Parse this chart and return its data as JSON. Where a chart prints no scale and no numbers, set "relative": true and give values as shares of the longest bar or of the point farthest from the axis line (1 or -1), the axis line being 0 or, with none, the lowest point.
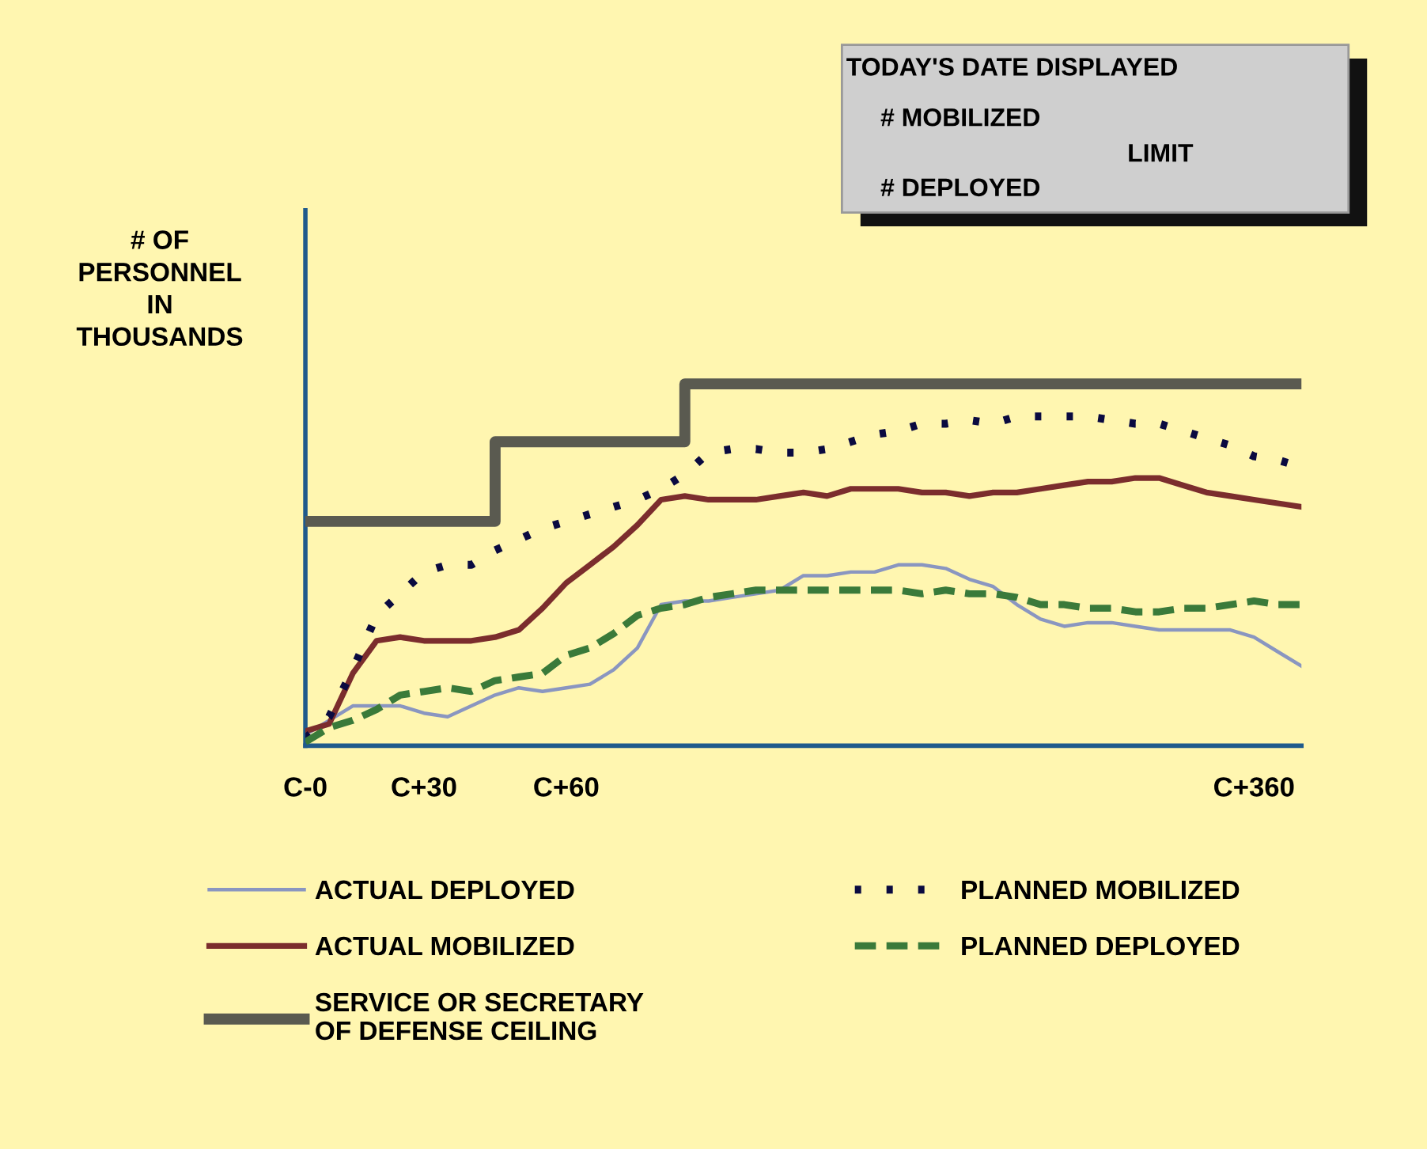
{
  "chart_data": {
    "type": "line",
    "relative": true,
    "ylabel": "# OF\nPERSONNEL\nIN\nTHOUSANDS",
    "categories": [
      "C-0",
      null,
      null,
      null,
      null,
      "C+30",
      null,
      null,
      null,
      null,
      null,
      "C+60",
      null,
      null,
      null,
      null,
      null,
      null,
      null,
      null,
      null,
      null,
      null,
      null,
      null,
      null,
      null,
      null,
      null,
      null,
      null,
      null,
      null,
      null,
      null,
      null,
      null,
      null,
      null,
      null,
      "C+360",
      null,
      null
    ],
    "annotations": [
      "TODAY'S DATE DISPLAYED",
      "# MOBILIZED",
      "LIMIT",
      "# DEPLOYED"
    ],
    "legend": "bottom",
    "grid": false,
    "marker": "none",
    "series": [
      {
        "name": "ACTUAL DEPLOYED",
        "color": "#8a96c0",
        "line_style": "solid",
        "values": [
          0.03,
          0.07,
          0.11,
          0.11,
          0.11,
          0.09,
          0.08,
          0.11,
          0.14,
          0.16,
          0.15,
          0.16,
          0.17,
          0.21,
          0.27,
          0.39,
          0.4,
          0.4,
          0.41,
          0.42,
          0.43,
          0.47,
          0.47,
          0.48,
          0.48,
          0.5,
          0.5,
          0.49,
          0.46,
          0.44,
          0.39,
          0.35,
          0.33,
          0.34,
          0.34,
          0.33,
          0.32,
          0.32,
          0.32,
          0.32,
          0.3,
          0.26,
          0.22
        ]
      },
      {
        "name": "ACTUAL MOBILIZED",
        "color": "#7b2d2d",
        "line_style": "solid",
        "values": [
          0.04,
          0.06,
          0.2,
          0.29,
          0.3,
          0.29,
          0.29,
          0.29,
          0.3,
          0.32,
          0.38,
          0.45,
          0.5,
          0.55,
          0.61,
          0.68,
          0.69,
          0.68,
          0.68,
          0.68,
          0.69,
          0.7,
          0.69,
          0.71,
          0.71,
          0.71,
          0.7,
          0.7,
          0.69,
          0.7,
          0.7,
          0.71,
          0.72,
          0.73,
          0.73,
          0.74,
          0.74,
          0.72,
          0.7,
          0.69,
          0.68,
          0.67,
          0.66
        ]
      },
      {
        "name": "SERVICE OR SECRETARY\nOF DEFENSE CEILING",
        "color": "#5a5a50",
        "type": "step",
        "line_style": "solid",
        "values": [
          0.62,
          0.62,
          0.62,
          0.62,
          0.62,
          0.62,
          0.62,
          0.62,
          0.84,
          0.84,
          0.84,
          0.84,
          0.84,
          0.84,
          0.84,
          0.84,
          1.0,
          1.0,
          1.0,
          1.0,
          1.0,
          1.0,
          1.0,
          1.0,
          1.0,
          1.0,
          1.0,
          1.0,
          1.0,
          1.0,
          1.0,
          1.0,
          1.0,
          1.0,
          1.0,
          1.0,
          1.0,
          1.0,
          1.0,
          1.0,
          1.0,
          1.0,
          1.0
        ]
      },
      {
        "name": "PLANNED MOBILIZED",
        "color": "#0a0a40",
        "line_style": "dotted",
        "values": [
          0.02,
          0.08,
          0.21,
          0.36,
          0.42,
          0.48,
          0.5,
          0.5,
          0.54,
          0.57,
          0.6,
          0.62,
          0.64,
          0.66,
          0.68,
          0.71,
          0.75,
          0.81,
          0.82,
          0.82,
          0.81,
          0.81,
          0.82,
          0.84,
          0.86,
          0.87,
          0.89,
          0.89,
          0.9,
          0.89,
          0.91,
          0.91,
          0.91,
          0.91,
          0.9,
          0.89,
          0.89,
          0.87,
          0.85,
          0.83,
          0.8,
          0.79,
          0.77
        ]
      },
      {
        "name": "PLANNED DEPLOYED",
        "color": "#3a7a3a",
        "line_style": "dashed",
        "values": [
          0.01,
          0.05,
          0.07,
          0.1,
          0.14,
          0.15,
          0.16,
          0.15,
          0.18,
          0.19,
          0.2,
          0.25,
          0.27,
          0.31,
          0.36,
          0.38,
          0.39,
          0.41,
          0.42,
          0.43,
          0.43,
          0.43,
          0.43,
          0.43,
          0.43,
          0.43,
          0.42,
          0.43,
          0.42,
          0.42,
          0.41,
          0.39,
          0.39,
          0.38,
          0.38,
          0.37,
          0.37,
          0.38,
          0.38,
          0.39,
          0.4,
          0.39,
          0.39
        ]
      }
    ]
  }
}
